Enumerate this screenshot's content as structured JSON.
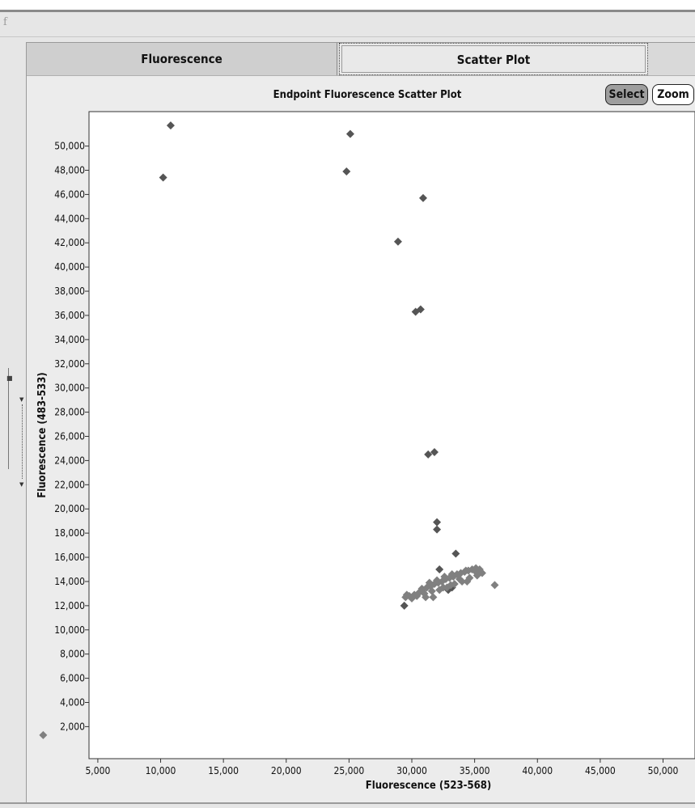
{
  "window": {
    "app_glyph": "f",
    "tabs": [
      {
        "label": "Fluorescence",
        "active": false
      },
      {
        "label": "Scatter Plot",
        "active": true
      }
    ]
  },
  "toolbar": {
    "select_label": "Select",
    "zoom_label": "Zoom"
  },
  "colors": {
    "point_dark": "#555555",
    "point_light": "#808080",
    "plot_bg": "#ffffff"
  },
  "chart_data": {
    "type": "scatter",
    "title": "Endpoint Fluorescence Scatter Plot",
    "xlabel": "Fluorescence (523-568)",
    "ylabel": "Fluorescence (483-533)",
    "xlim": [
      0,
      52000
    ],
    "ylim": [
      0,
      53000
    ],
    "xticks": [
      "5,000",
      "10,000",
      "15,000",
      "20,000",
      "25,000",
      "30,000",
      "35,000",
      "40,000",
      "45,000",
      "50,000"
    ],
    "yticks": [
      "2,000",
      "4,000",
      "6,000",
      "8,000",
      "10,000",
      "12,000",
      "14,000",
      "16,000",
      "18,000",
      "20,000",
      "22,000",
      "24,000",
      "26,000",
      "28,000",
      "30,000",
      "32,000",
      "34,000",
      "36,000",
      "38,000",
      "40,000",
      "42,000",
      "44,000",
      "46,000",
      "48,000",
      "50,000"
    ],
    "grid": false,
    "series": [
      {
        "color": "#555555",
        "x": [
          10800,
          10200,
          25100,
          24800,
          30900,
          28900,
          30700,
          30300,
          31800,
          31300,
          32000,
          32000,
          33500,
          32200,
          32900,
          33200,
          29400
        ],
        "y": [
          51700,
          47400,
          51000,
          47900,
          45700,
          42100,
          36500,
          36300,
          24700,
          24500,
          18900,
          18300,
          16300,
          15000,
          13300,
          13500,
          12000
        ]
      },
      {
        "color": "#808080",
        "x": [
          650,
          29500,
          29800,
          30200,
          30600,
          30900,
          31200,
          31500,
          31800,
          32100,
          32400,
          32700,
          33000,
          33300,
          33600,
          33900,
          34200,
          34500,
          34800,
          35100,
          35400,
          35600,
          30000,
          30400,
          31000,
          31600,
          32200,
          32800,
          33400,
          34000,
          34600,
          35200,
          36600,
          29600,
          30800,
          31400,
          32000,
          32600,
          33200,
          33800,
          34400,
          35000,
          31100,
          31700,
          32500,
          33100,
          34300,
          35300
        ],
        "y": [
          1300,
          12700,
          12800,
          12900,
          13100,
          13300,
          13500,
          13600,
          13800,
          13900,
          14000,
          14200,
          14300,
          14400,
          14600,
          14700,
          14800,
          14900,
          15000,
          15100,
          15000,
          14700,
          12600,
          12800,
          13000,
          13200,
          13300,
          13500,
          13800,
          14000,
          14300,
          14500,
          13700,
          12900,
          13400,
          13900,
          14100,
          14400,
          14600,
          14200,
          14000,
          14900,
          12700,
          12700,
          13500,
          13700,
          14900,
          14800
        ]
      }
    ]
  }
}
